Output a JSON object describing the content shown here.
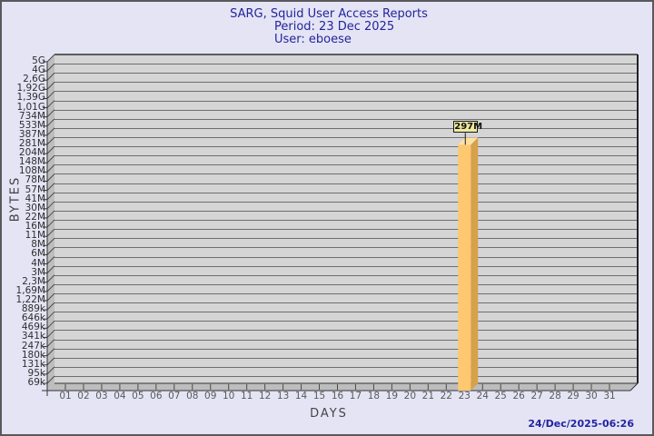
{
  "title": {
    "line1": "SARG, Squid User Access Reports",
    "line2": "Period: 23 Dec 2025",
    "line3": "User: eboese"
  },
  "y_axis": {
    "label": "BYTES",
    "ticks": [
      "5G",
      "4G",
      "2,6G",
      "1,92G",
      "1,39G",
      "1,01G",
      "734M",
      "533M",
      "387M",
      "281M",
      "204M",
      "148M",
      "108M",
      "78M",
      "57M",
      "41M",
      "30M",
      "22M",
      "16M",
      "11M",
      "8M",
      "6M",
      "4M",
      "3M",
      "2,3M",
      "1,69M",
      "1,22M",
      "889k",
      "646k",
      "469k",
      "341k",
      "247k",
      "180k",
      "131k",
      "95k",
      "69k"
    ]
  },
  "x_axis": {
    "label": "DAYS",
    "ticks": [
      "01",
      "02",
      "03",
      "04",
      "05",
      "06",
      "07",
      "08",
      "09",
      "10",
      "11",
      "12",
      "13",
      "14",
      "15",
      "16",
      "17",
      "18",
      "19",
      "20",
      "21",
      "22",
      "23",
      "24",
      "25",
      "26",
      "27",
      "28",
      "29",
      "30",
      "31"
    ]
  },
  "bar": {
    "day": "23",
    "value_label": "297M"
  },
  "footer": {
    "timestamp": "24/Dec/2025-06:26"
  },
  "chart_data": {
    "type": "bar",
    "title": "SARG, Squid User Access Reports",
    "subtitle": "Period: 23 Dec 2025",
    "user": "User: eboese",
    "xlabel": "DAYS",
    "ylabel": "BYTES",
    "yscale": "log",
    "yticks": [
      "5G",
      "4G",
      "2,6G",
      "1,92G",
      "1,39G",
      "1,01G",
      "734M",
      "533M",
      "387M",
      "281M",
      "204M",
      "148M",
      "108M",
      "78M",
      "57M",
      "41M",
      "30M",
      "22M",
      "16M",
      "11M",
      "8M",
      "6M",
      "4M",
      "3M",
      "2,3M",
      "1,69M",
      "1,22M",
      "889k",
      "646k",
      "469k",
      "341k",
      "247k",
      "180k",
      "131k",
      "95k",
      "69k"
    ],
    "ylim_bytes": [
      69000,
      5000000000
    ],
    "grid": true,
    "legend": "none",
    "categories": [
      "01",
      "02",
      "03",
      "04",
      "05",
      "06",
      "07",
      "08",
      "09",
      "10",
      "11",
      "12",
      "13",
      "14",
      "15",
      "16",
      "17",
      "18",
      "19",
      "20",
      "21",
      "22",
      "23",
      "24",
      "25",
      "26",
      "27",
      "28",
      "29",
      "30",
      "31"
    ],
    "values": [
      0,
      0,
      0,
      0,
      0,
      0,
      0,
      0,
      0,
      0,
      0,
      0,
      0,
      0,
      0,
      0,
      0,
      0,
      0,
      0,
      0,
      0,
      297000000,
      0,
      0,
      0,
      0,
      0,
      0,
      0,
      0
    ],
    "data_labels": [
      {
        "category": "23",
        "label": "297M"
      }
    ],
    "footer_timestamp": "24/Dec/2025-06:26"
  },
  "colors": {
    "page_bg": "#e4e4f5",
    "frame_border": "#59595c",
    "title_text": "#24249b",
    "plot_bg": "#d5d5d5",
    "grid_line": "#6e6e6e",
    "wall": "#bdbdbd",
    "axis_line": "#333333",
    "panel_edge": "#222222",
    "bar_front": "#fdc86f",
    "bar_side": "#d7a14b",
    "bar_top": "#ffe1a2",
    "label_box_bg": "#efe9a0",
    "label_box_border": "#1a1a1a",
    "timestamp_text": "#2323a3"
  }
}
